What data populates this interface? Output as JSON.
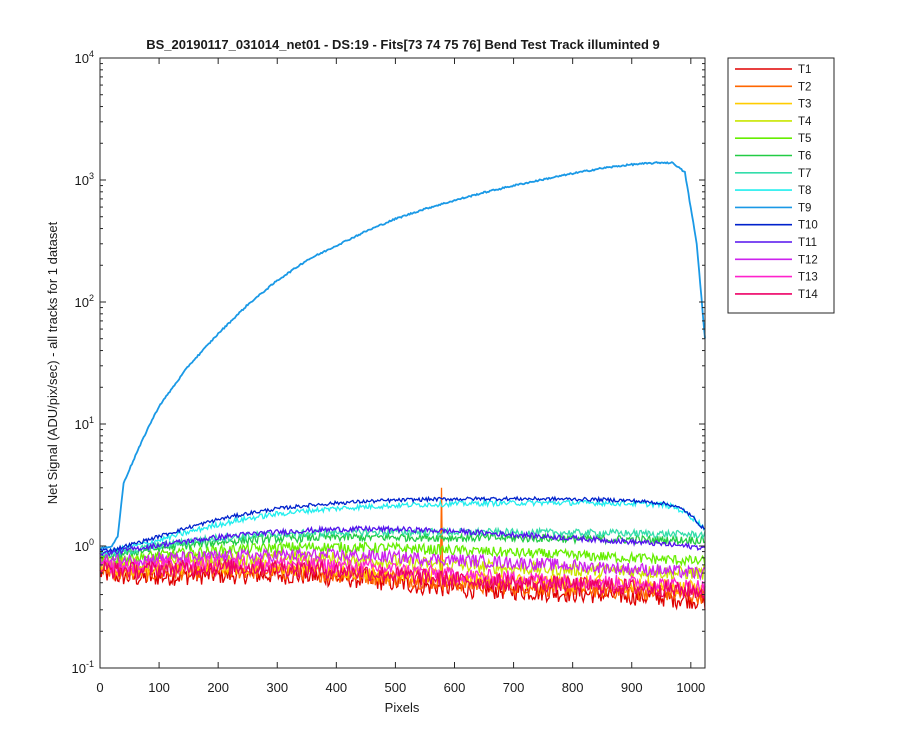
{
  "chart_data": {
    "type": "line",
    "title": "BS_20190117_031014_net01 - DS:19 - Fits[73  74  75  76]    Bend Test        Track illuminted 9",
    "xlabel": "Pixels",
    "ylabel": "Net Signal (ADU/pix/sec) - all tracks for 1 dataset",
    "yscale": "log",
    "xlim": [
      0,
      1024
    ],
    "ylim": [
      0.1,
      10000
    ],
    "xticks": [
      0,
      100,
      200,
      300,
      400,
      500,
      600,
      700,
      800,
      900,
      1000
    ],
    "yticks": [
      {
        "value": 0.1,
        "base": "10",
        "exp": "-1"
      },
      {
        "value": 1,
        "base": "10",
        "exp": "0"
      },
      {
        "value": 10,
        "base": "10",
        "exp": "1"
      },
      {
        "value": 100,
        "base": "10",
        "exp": "2"
      },
      {
        "value": 1000,
        "base": "10",
        "exp": "3"
      },
      {
        "value": 10000,
        "base": "10",
        "exp": "4"
      }
    ],
    "grid": false,
    "legend_position": "outside-right",
    "spike": {
      "series": "T2",
      "x": 578,
      "y": 3.0
    },
    "x": [
      0,
      20,
      30,
      40,
      60,
      80,
      100,
      150,
      200,
      250,
      300,
      350,
      400,
      450,
      500,
      550,
      600,
      650,
      700,
      750,
      800,
      850,
      900,
      950,
      970,
      990,
      1010,
      1024
    ],
    "series": [
      {
        "name": "T1",
        "color": "#e00000",
        "noise": 0.18,
        "values": [
          0.6,
          0.58,
          0.57,
          0.56,
          0.55,
          0.55,
          0.56,
          0.57,
          0.58,
          0.58,
          0.58,
          0.57,
          0.55,
          0.53,
          0.5,
          0.47,
          0.45,
          0.44,
          0.43,
          0.42,
          0.41,
          0.4,
          0.39,
          0.38,
          0.37,
          0.37,
          0.36,
          0.35
        ]
      },
      {
        "name": "T2",
        "color": "#ff6600",
        "noise": 0.17,
        "values": [
          0.65,
          0.62,
          0.61,
          0.6,
          0.6,
          0.6,
          0.61,
          0.62,
          0.63,
          0.63,
          0.62,
          0.61,
          0.59,
          0.57,
          0.55,
          0.52,
          0.5,
          0.48,
          0.47,
          0.46,
          0.45,
          0.44,
          0.43,
          0.42,
          0.41,
          0.4,
          0.4,
          0.39
        ]
      },
      {
        "name": "T3",
        "color": "#ffcc00",
        "noise": 0.15,
        "values": [
          0.7,
          0.67,
          0.66,
          0.65,
          0.65,
          0.65,
          0.66,
          0.67,
          0.68,
          0.68,
          0.67,
          0.66,
          0.64,
          0.62,
          0.6,
          0.57,
          0.55,
          0.53,
          0.52,
          0.51,
          0.5,
          0.49,
          0.48,
          0.47,
          0.46,
          0.45,
          0.45,
          0.44
        ]
      },
      {
        "name": "T4",
        "color": "#c8e600",
        "noise": 0.13,
        "values": [
          0.75,
          0.72,
          0.72,
          0.72,
          0.73,
          0.74,
          0.75,
          0.77,
          0.79,
          0.8,
          0.8,
          0.8,
          0.79,
          0.77,
          0.75,
          0.72,
          0.7,
          0.68,
          0.66,
          0.65,
          0.64,
          0.63,
          0.62,
          0.61,
          0.6,
          0.6,
          0.6,
          0.6
        ]
      },
      {
        "name": "T5",
        "color": "#66ee00",
        "noise": 0.1,
        "values": [
          0.8,
          0.78,
          0.78,
          0.79,
          0.8,
          0.82,
          0.84,
          0.88,
          0.92,
          0.95,
          0.97,
          0.98,
          0.98,
          0.97,
          0.96,
          0.94,
          0.92,
          0.9,
          0.88,
          0.86,
          0.84,
          0.82,
          0.8,
          0.78,
          0.77,
          0.76,
          0.75,
          0.75
        ]
      },
      {
        "name": "T6",
        "color": "#22cc44",
        "noise": 0.08,
        "values": [
          0.85,
          0.84,
          0.85,
          0.87,
          0.9,
          0.93,
          0.96,
          1.02,
          1.08,
          1.12,
          1.15,
          1.17,
          1.18,
          1.18,
          1.18,
          1.18,
          1.17,
          1.17,
          1.16,
          1.16,
          1.15,
          1.14,
          1.13,
          1.12,
          1.12,
          1.12,
          1.12,
          1.12
        ]
      },
      {
        "name": "T7",
        "color": "#33ddaa",
        "noise": 0.07,
        "values": [
          0.87,
          0.86,
          0.87,
          0.89,
          0.93,
          0.97,
          1.01,
          1.09,
          1.16,
          1.21,
          1.25,
          1.27,
          1.29,
          1.3,
          1.3,
          1.3,
          1.3,
          1.3,
          1.29,
          1.29,
          1.28,
          1.28,
          1.27,
          1.26,
          1.25,
          1.25,
          1.24,
          1.24
        ]
      },
      {
        "name": "T8",
        "color": "#22eeee",
        "noise": 0.05,
        "values": [
          0.9,
          0.9,
          0.92,
          0.95,
          1.0,
          1.06,
          1.12,
          1.3,
          1.5,
          1.68,
          1.83,
          1.95,
          2.03,
          2.1,
          2.15,
          2.19,
          2.22,
          2.24,
          2.25,
          2.26,
          2.26,
          2.25,
          2.23,
          2.18,
          2.1,
          1.9,
          1.6,
          1.4
        ]
      },
      {
        "name": "T9",
        "color": "#1a99e6",
        "noise": 0.015,
        "values": [
          0.95,
          1.0,
          1.2,
          3.3,
          5.5,
          9.0,
          14.0,
          30.0,
          55.0,
          95.0,
          150.0,
          220.0,
          290.0,
          380.0,
          480.0,
          580.0,
          680.0,
          790.0,
          900.0,
          1010.0,
          1130.0,
          1250.0,
          1340.0,
          1390.0,
          1380.0,
          1150.0,
          300.0,
          50.0
        ]
      },
      {
        "name": "T10",
        "color": "#0022cc",
        "noise": 0.035,
        "values": [
          0.92,
          0.93,
          0.95,
          0.99,
          1.05,
          1.12,
          1.2,
          1.42,
          1.65,
          1.85,
          2.02,
          2.15,
          2.25,
          2.32,
          2.37,
          2.41,
          2.43,
          2.44,
          2.44,
          2.43,
          2.42,
          2.4,
          2.35,
          2.25,
          2.15,
          1.95,
          1.6,
          1.35
        ]
      },
      {
        "name": "T11",
        "color": "#5511ee",
        "noise": 0.05,
        "values": [
          0.88,
          0.88,
          0.89,
          0.92,
          0.95,
          0.98,
          1.02,
          1.1,
          1.18,
          1.25,
          1.3,
          1.34,
          1.37,
          1.38,
          1.37,
          1.35,
          1.32,
          1.28,
          1.24,
          1.2,
          1.16,
          1.12,
          1.08,
          1.04,
          1.02,
          1.0,
          0.98,
          0.96
        ]
      },
      {
        "name": "T12",
        "color": "#cc22ee",
        "noise": 0.12,
        "values": [
          0.78,
          0.76,
          0.76,
          0.76,
          0.77,
          0.78,
          0.79,
          0.8,
          0.82,
          0.83,
          0.84,
          0.84,
          0.84,
          0.83,
          0.81,
          0.79,
          0.77,
          0.75,
          0.73,
          0.71,
          0.69,
          0.67,
          0.65,
          0.63,
          0.62,
          0.61,
          0.6,
          0.6
        ]
      },
      {
        "name": "T13",
        "color": "#ff22cc",
        "noise": 0.14,
        "values": [
          0.7,
          0.68,
          0.68,
          0.68,
          0.68,
          0.69,
          0.7,
          0.71,
          0.72,
          0.72,
          0.72,
          0.71,
          0.69,
          0.67,
          0.64,
          0.61,
          0.58,
          0.56,
          0.55,
          0.53,
          0.52,
          0.51,
          0.5,
          0.49,
          0.48,
          0.47,
          0.47,
          0.46
        ]
      },
      {
        "name": "T14",
        "color": "#ee0066",
        "noise": 0.16,
        "values": [
          0.66,
          0.64,
          0.63,
          0.63,
          0.63,
          0.64,
          0.65,
          0.66,
          0.67,
          0.67,
          0.66,
          0.65,
          0.63,
          0.61,
          0.58,
          0.55,
          0.53,
          0.51,
          0.5,
          0.49,
          0.48,
          0.47,
          0.46,
          0.45,
          0.44,
          0.43,
          0.43,
          0.42
        ]
      }
    ]
  }
}
